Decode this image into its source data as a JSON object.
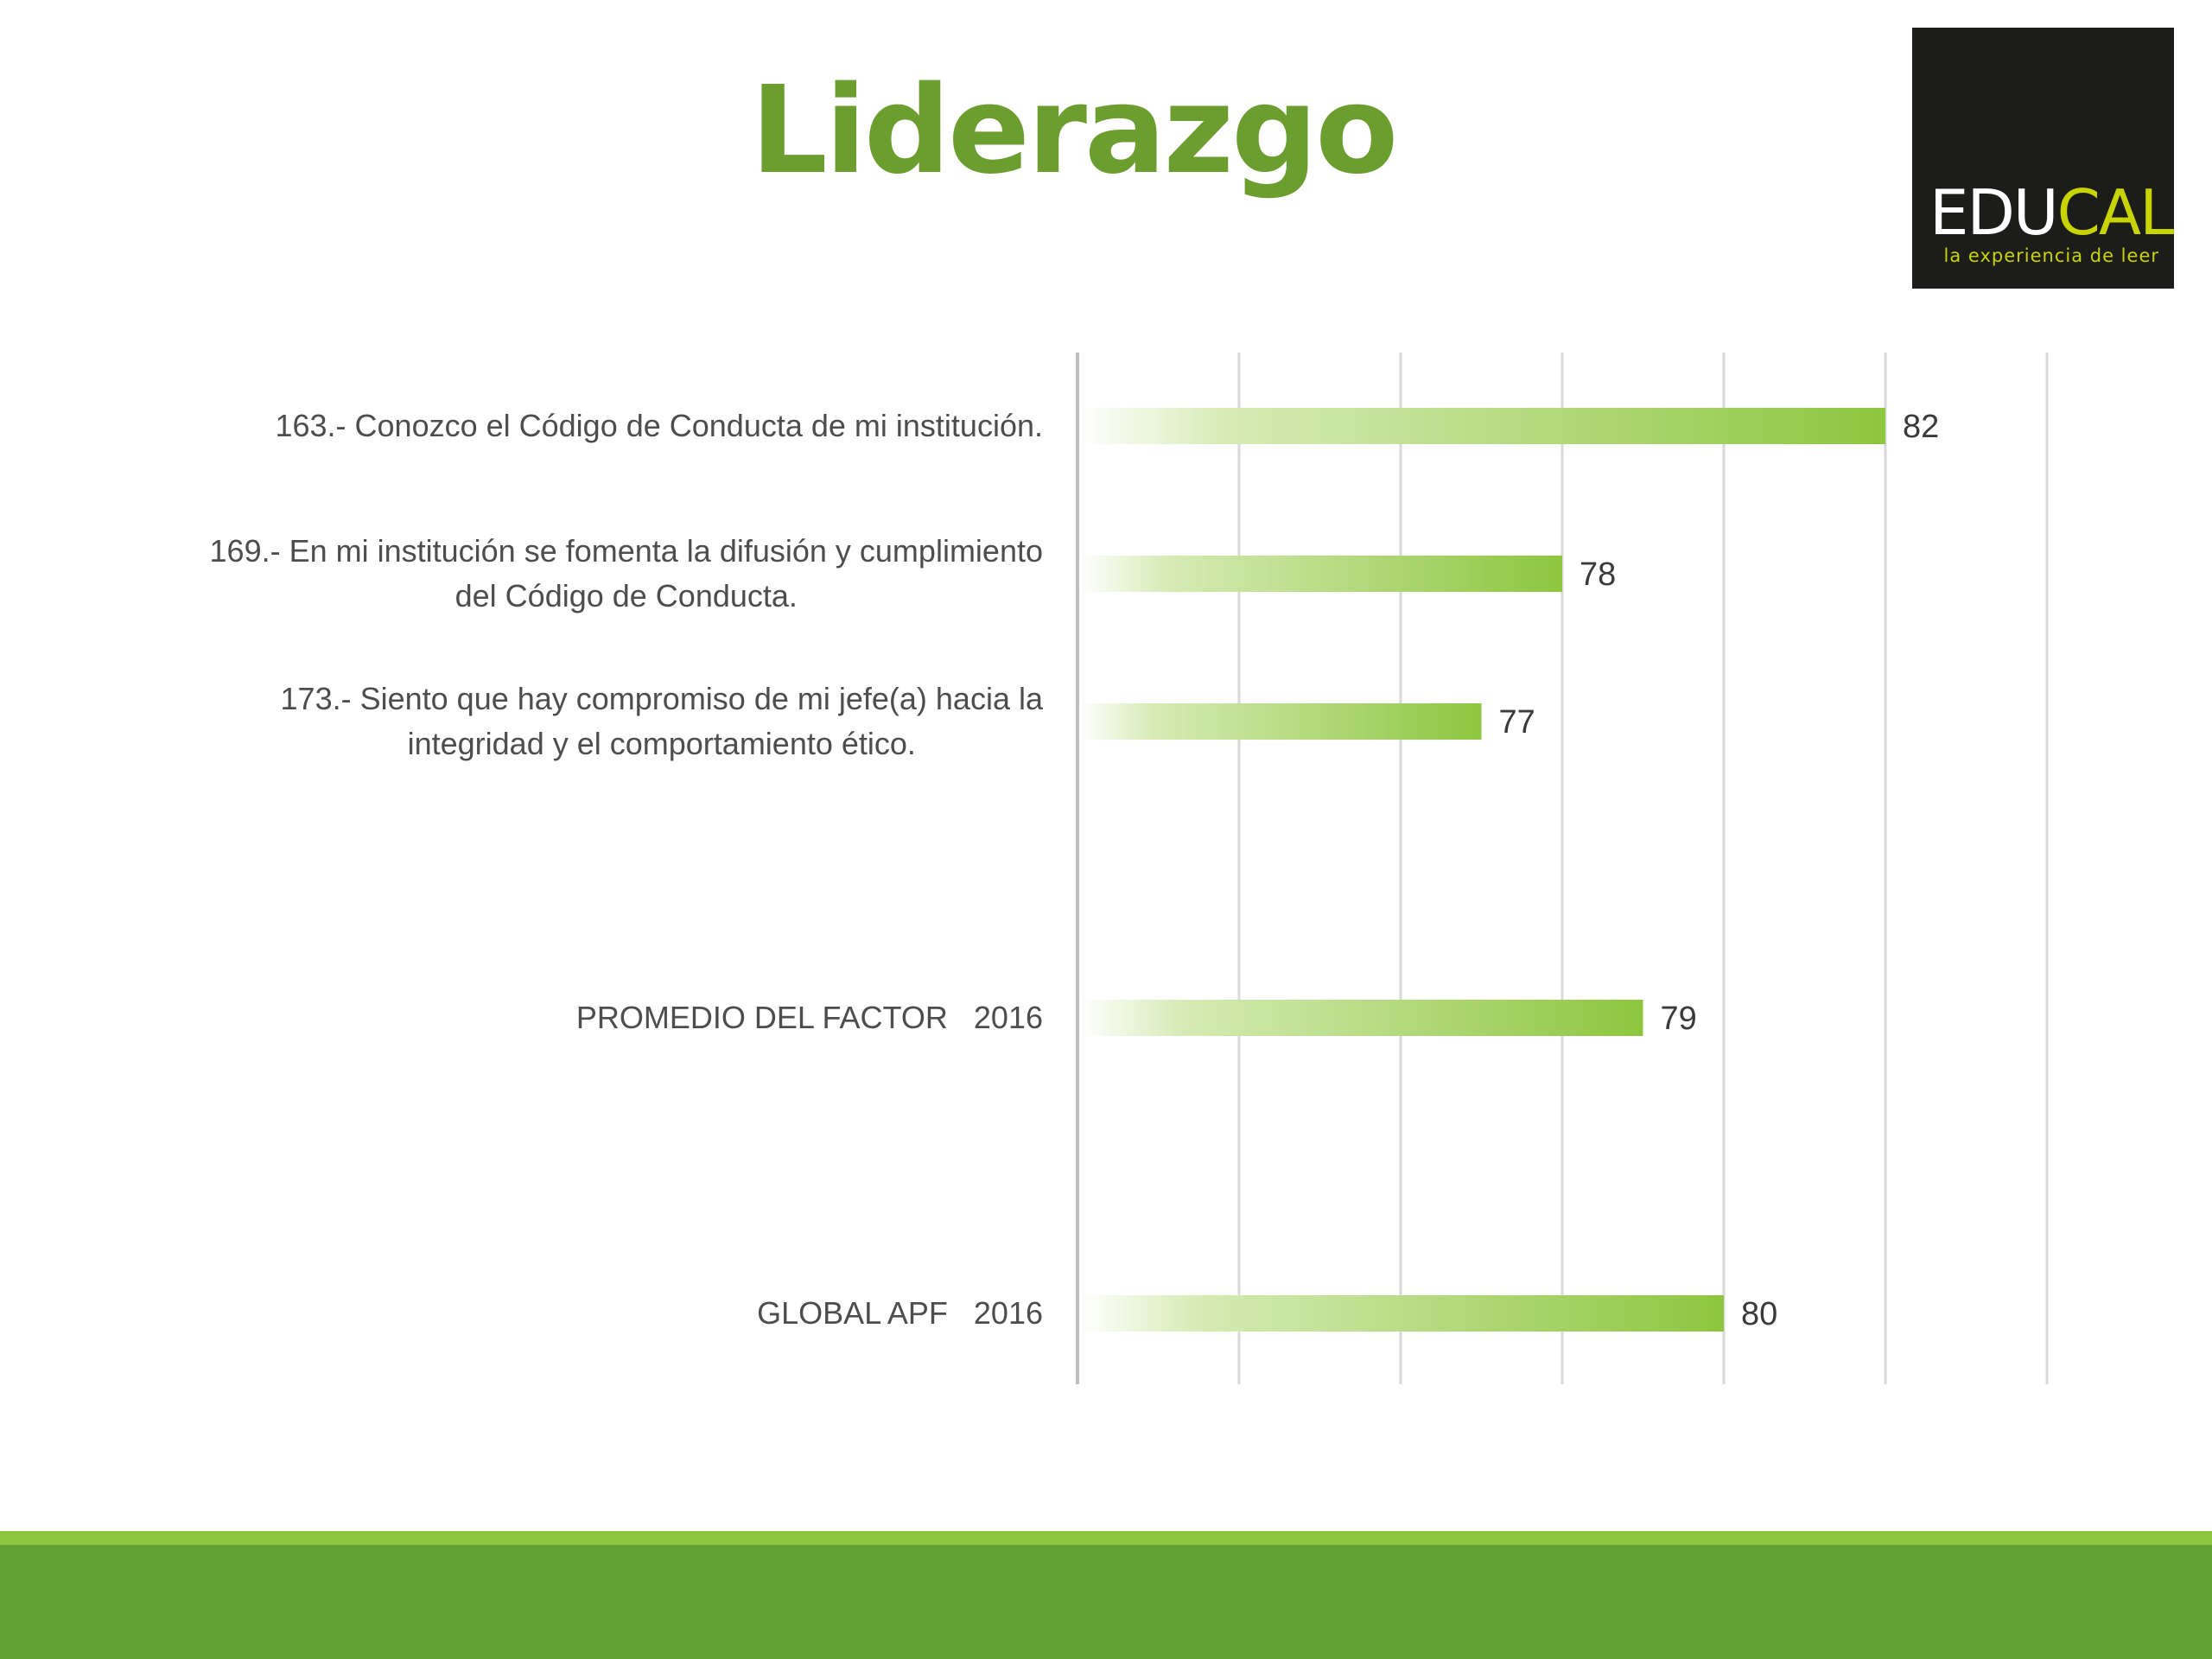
{
  "slide": {
    "title": "Liderazgo"
  },
  "logo": {
    "word_main": "EDU",
    "word_accent": "CAL",
    "tagline": "la experiencia de leer"
  },
  "colors": {
    "title": "#6b9e2f",
    "bar_start": "#ffffff",
    "bar_end": "#8dc63f",
    "gridline": "#d9d9d9",
    "axis": "#bfbfbf",
    "footer_band": "#63a135",
    "footer_line": "#8cc63f"
  },
  "chart_data": {
    "type": "bar",
    "orientation": "horizontal",
    "categories": [
      [
        "163.- Conozco el Código de Conducta de mi institución."
      ],
      [
        "169.- En mi institución se fomenta la difusión y cumplimiento",
        "del Código de Conducta."
      ],
      [
        "173.- Siento que hay compromiso de mi jefe(a) hacia la",
        "integridad y el comportamiento ético."
      ],
      [
        "PROMEDIO DEL FACTOR   2016"
      ],
      [
        "GLOBAL APF   2016"
      ]
    ],
    "values": [
      82,
      78,
      77,
      79,
      80
    ],
    "data_labels": [
      "82",
      "78",
      "77",
      "79",
      "80"
    ],
    "xlim": [
      72,
      84
    ],
    "grid_step": 2,
    "grid": true,
    "bar_fill": "gradient"
  }
}
